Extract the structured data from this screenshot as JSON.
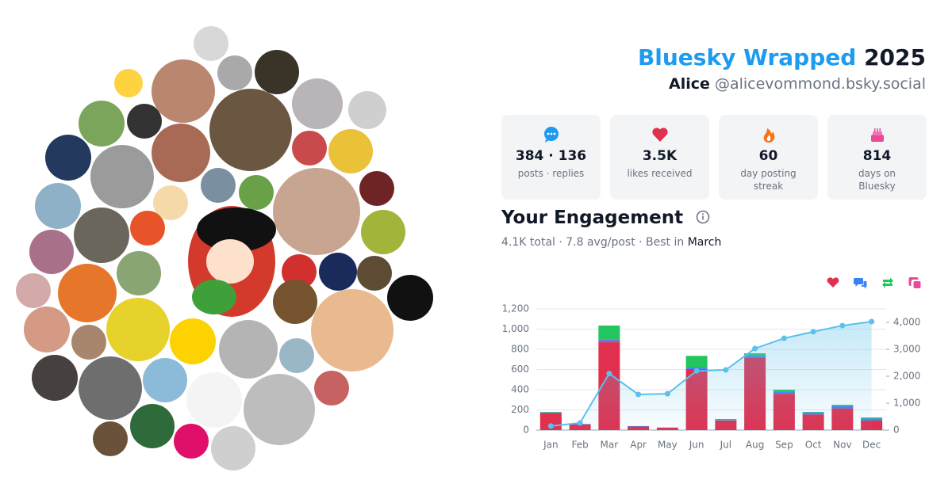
{
  "header": {
    "brand": "Bluesky Wrapped",
    "year": "2025",
    "name": "Alice",
    "handle": "@alicevommond.bsky.social"
  },
  "stats": [
    {
      "value": "384 · 136",
      "label": "posts · replies"
    },
    {
      "value": "3.5K",
      "label": "likes received"
    },
    {
      "value": "60",
      "label": "day posting streak"
    },
    {
      "value": "814",
      "label": "days on Bluesky"
    }
  ],
  "engagement": {
    "title": "Your Engagement",
    "summary": "4.1K total · 7.8 avg/post · Best in",
    "best_month": "March"
  },
  "chart_data": {
    "type": "bar",
    "stacked": true,
    "categories": [
      "Jan",
      "Feb",
      "Mar",
      "Apr",
      "May",
      "Jun",
      "Jul",
      "Aug",
      "Sep",
      "Oct",
      "Nov",
      "Dec"
    ],
    "series": [
      {
        "color": "#e0304e",
        "values": [
          170,
          55,
          870,
          35,
          25,
          605,
          95,
          720,
          360,
          155,
          215,
          95
        ]
      },
      {
        "color": "#3b82f6",
        "values": [
          5,
          5,
          20,
          5,
          0,
          15,
          5,
          15,
          20,
          20,
          25,
          20
        ]
      },
      {
        "color": "#ec4899",
        "values": [
          0,
          0,
          10,
          0,
          0,
          0,
          0,
          0,
          0,
          0,
          0,
          0
        ]
      },
      {
        "color": "#22c55e",
        "values": [
          5,
          0,
          135,
          0,
          0,
          115,
          10,
          25,
          20,
          5,
          10,
          10
        ]
      },
      {
        "type": "line",
        "axis": "y2",
        "color": "#5bc0eb",
        "values": [
          150,
          265,
          2100,
          1325,
          1350,
          2200,
          2235,
          3030,
          3410,
          3650,
          3880,
          4030
        ]
      }
    ],
    "legend_order": [
      0,
      1,
      3,
      2
    ],
    "ylim": [
      0,
      1200
    ],
    "yticks": [
      0,
      200,
      400,
      600,
      800,
      {
        "value": 1000,
        "label": "1,000"
      },
      {
        "value": 1200,
        "label": "1,200"
      }
    ],
    "y2lim": [
      0,
      4500
    ],
    "y2ticks": [
      0,
      {
        "value": 1000,
        "label": "1,000"
      },
      {
        "value": 2000,
        "label": "2,000"
      },
      {
        "value": 3000,
        "label": "3,000"
      },
      {
        "value": 4000,
        "label": "4,000"
      }
    ],
    "grid": true
  }
}
